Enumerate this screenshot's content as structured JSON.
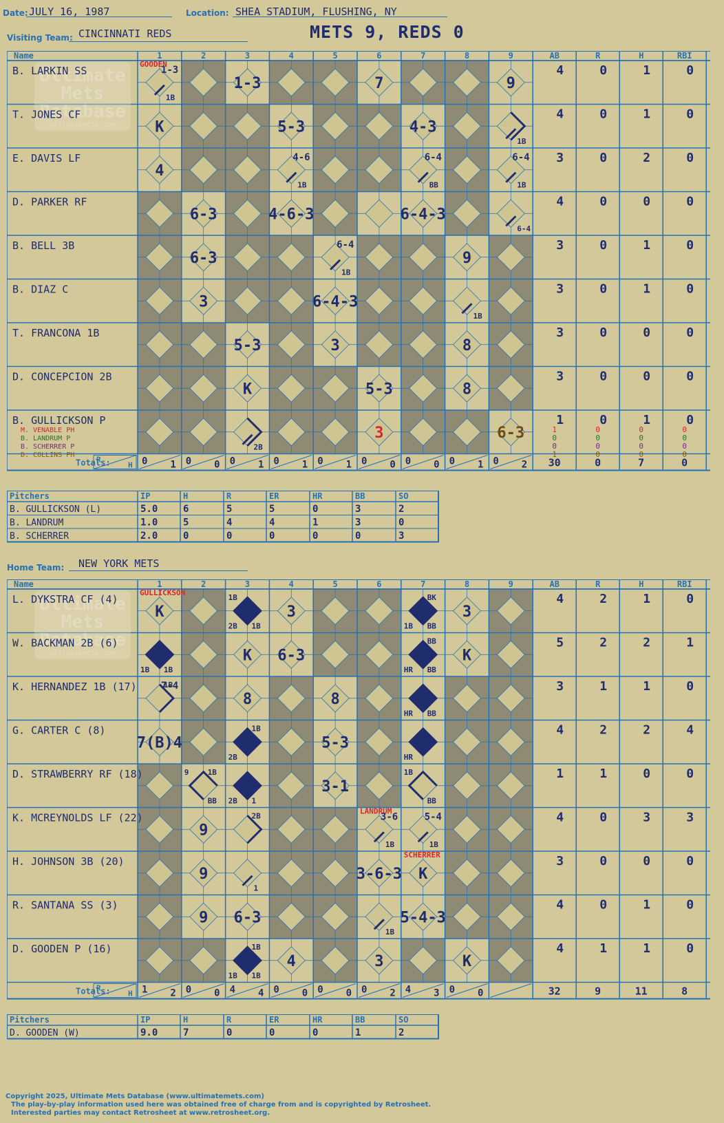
{
  "header": {
    "date_label": "Date:",
    "date": "JULY 16, 1987",
    "location_label": "Location:",
    "location": "SHEA STADIUM, FLUSHING, NY",
    "headline": "METS 9, REDS 0",
    "visiting_label": "Visiting Team:",
    "visiting_team": "CINCINNATI REDS",
    "home_label": "Home Team:",
    "home_team": "NEW YORK METS"
  },
  "columns": {
    "name": "Name",
    "innings": [
      "1",
      "2",
      "3",
      "4",
      "5",
      "6",
      "7",
      "8",
      "9"
    ],
    "stats": [
      "AB",
      "R",
      "H",
      "RBI"
    ],
    "totals": "Totals:",
    "r": "R",
    "h": "H"
  },
  "watermark": {
    "line1": "Ultimate",
    "line2": "Mets",
    "line3": "Database",
    "url": "ultimatemets.com"
  },
  "colors": {
    "background": "#d3c89a",
    "grid": "#2670b4",
    "shade": "#8e8a74",
    "ink": "#1f2c6e",
    "red": "#d8262c",
    "brown": "#6e4a14"
  },
  "visitors": {
    "shade": [
      [
        0,
        1,
        0,
        1,
        1,
        0,
        1,
        1,
        0
      ],
      [
        0,
        1,
        1,
        0,
        1,
        1,
        0,
        1,
        0
      ],
      [
        0,
        1,
        1,
        0,
        1,
        1,
        0,
        1,
        0
      ],
      [
        1,
        0,
        1,
        0,
        1,
        0,
        0,
        1,
        0
      ],
      [
        1,
        0,
        1,
        1,
        0,
        1,
        1,
        0,
        1
      ],
      [
        1,
        0,
        1,
        1,
        0,
        1,
        1,
        0,
        1
      ],
      [
        1,
        1,
        0,
        1,
        0,
        1,
        1,
        0,
        1
      ],
      [
        1,
        1,
        0,
        1,
        1,
        0,
        1,
        0,
        1
      ],
      [
        1,
        1,
        0,
        1,
        1,
        0,
        1,
        1,
        0
      ]
    ],
    "rows": [
      {
        "name": "B. LARKIN SS",
        "stats": [
          "4",
          "0",
          "1",
          "0"
        ],
        "marks": [
          {
            "c": 1,
            "t": "1-3",
            "s": "small"
          },
          {
            "c": 1,
            "b": "1B"
          },
          {
            "c": 3,
            "t": "1-3"
          },
          {
            "c": 6,
            "t": "7"
          },
          {
            "c": 9,
            "t": "9"
          }
        ],
        "subs": []
      },
      {
        "name": "T. JONES CF",
        "stats": [
          "4",
          "0",
          "1",
          "0"
        ],
        "marks": [
          {
            "c": 1,
            "t": "K"
          },
          {
            "c": 4,
            "t": "5-3"
          },
          {
            "c": 7,
            "t": "4-3"
          },
          {
            "c": 9,
            "b": "1B",
            "path": 2
          }
        ],
        "subs": []
      },
      {
        "name": "E. DAVIS LF",
        "stats": [
          "3",
          "0",
          "2",
          "0"
        ],
        "marks": [
          {
            "c": 1,
            "t": "4"
          },
          {
            "c": 4,
            "t": "4-6",
            "s": "small"
          },
          {
            "c": 4,
            "b": "1B"
          },
          {
            "c": 7,
            "t": "6-4",
            "s": "small"
          },
          {
            "c": 7,
            "b": "BB"
          },
          {
            "c": 9,
            "t": "6-4",
            "s": "small"
          },
          {
            "c": 9,
            "b": "1B"
          }
        ],
        "subs": []
      },
      {
        "name": "D. PARKER RF",
        "stats": [
          "4",
          "0",
          "0",
          "0"
        ],
        "marks": [
          {
            "c": 2,
            "t": "6-3"
          },
          {
            "c": 4,
            "t": "4-6-3"
          },
          {
            "c": 7,
            "t": "6-4-3"
          },
          {
            "c": 9,
            "b": "6-4"
          }
        ],
        "subs": []
      },
      {
        "name": "B. BELL 3B",
        "stats": [
          "3",
          "0",
          "1",
          "0"
        ],
        "marks": [
          {
            "c": 2,
            "t": "6-3"
          },
          {
            "c": 5,
            "t": "6-4",
            "s": "small"
          },
          {
            "c": 5,
            "b": "1B"
          },
          {
            "c": 8,
            "t": "9"
          }
        ],
        "subs": []
      },
      {
        "name": "B. DIAZ C",
        "stats": [
          "3",
          "0",
          "1",
          "0"
        ],
        "marks": [
          {
            "c": 2,
            "t": "3"
          },
          {
            "c": 5,
            "t": "6-4-3"
          },
          {
            "c": 8,
            "b": "1B"
          }
        ],
        "subs": []
      },
      {
        "name": "T. FRANCONA 1B",
        "stats": [
          "3",
          "0",
          "0",
          "0"
        ],
        "marks": [
          {
            "c": 3,
            "t": "5-3"
          },
          {
            "c": 5,
            "t": "3"
          },
          {
            "c": 8,
            "t": "8"
          }
        ],
        "subs": []
      },
      {
        "name": "D. CONCEPCION 2B",
        "stats": [
          "3",
          "0",
          "0",
          "0"
        ],
        "marks": [
          {
            "c": 3,
            "t": "K"
          },
          {
            "c": 6,
            "t": "5-3"
          },
          {
            "c": 8,
            "t": "8"
          }
        ],
        "subs": []
      },
      {
        "name": "B. GULLICKSON P",
        "stats": [
          "1",
          "0",
          "1",
          "0"
        ],
        "marks": [
          {
            "c": 3,
            "b": "2B",
            "path": 2
          },
          {
            "c": 6,
            "t": "3",
            "color": "red"
          },
          {
            "c": 9,
            "t": "6-3",
            "color": "brown"
          }
        ],
        "subs": [
          {
            "name": "M. VENABLE PH",
            "color": "#d8262c",
            "stats": [
              "1",
              "0",
              "0",
              "0"
            ]
          },
          {
            "name": "B. LANDRUM P",
            "color": "#2a7a1c",
            "stats": [
              "0",
              "0",
              "0",
              "0"
            ]
          },
          {
            "name": "B. SCHERRER P",
            "color": "#7a2a8a",
            "stats": [
              "0",
              "0",
              "0",
              "0"
            ]
          },
          {
            "name": "D. COLLINS PH",
            "color": "#7a5a14",
            "stats": [
              "1",
              "0",
              "0",
              "0"
            ]
          }
        ]
      }
    ],
    "pitcher_note": "GOODEN",
    "totals": {
      "innings": [
        [
          "0",
          "1"
        ],
        [
          "0",
          "0"
        ],
        [
          "0",
          "1"
        ],
        [
          "0",
          "1"
        ],
        [
          "0",
          "1"
        ],
        [
          "0",
          "0"
        ],
        [
          "0",
          "0"
        ],
        [
          "0",
          "1"
        ],
        [
          "0",
          "2"
        ]
      ],
      "stats": [
        "30",
        "0",
        "7",
        "0"
      ]
    }
  },
  "visitor_pitchers": {
    "header": [
      "Pitchers",
      "IP",
      "H",
      "R",
      "ER",
      "HR",
      "BB",
      "SO"
    ],
    "rows": [
      [
        "B. GULLICKSON (L)",
        "5.0",
        "6",
        "5",
        "5",
        "0",
        "3",
        "2"
      ],
      [
        "B. LANDRUM",
        "1.0",
        "5",
        "4",
        "4",
        "1",
        "3",
        "0"
      ],
      [
        "B. SCHERRER",
        "2.0",
        "0",
        "0",
        "0",
        "0",
        "0",
        "3"
      ]
    ]
  },
  "home": {
    "shade": [
      [
        0,
        1,
        0,
        0,
        1,
        1,
        0,
        0,
        1
      ],
      [
        0,
        1,
        0,
        0,
        1,
        1,
        0,
        0,
        1
      ],
      [
        0,
        1,
        0,
        1,
        0,
        1,
        0,
        1,
        1
      ],
      [
        0,
        1,
        0,
        1,
        0,
        1,
        0,
        1,
        1
      ],
      [
        1,
        0,
        0,
        1,
        0,
        1,
        0,
        1,
        1
      ],
      [
        1,
        0,
        0,
        1,
        1,
        0,
        0,
        1,
        1
      ],
      [
        1,
        0,
        0,
        1,
        1,
        0,
        0,
        1,
        1
      ],
      [
        1,
        0,
        0,
        1,
        1,
        0,
        0,
        1,
        1
      ],
      [
        1,
        1,
        0,
        0,
        1,
        0,
        1,
        0,
        1
      ]
    ],
    "rows": [
      {
        "name": "L. DYKSTRA CF (4)",
        "stats": [
          "4",
          "2",
          "1",
          "0"
        ],
        "marks": [
          {
            "c": 1,
            "t": "K"
          },
          {
            "c": 3,
            "run": true,
            "tl": "1B",
            "bl": "2B",
            "br": "1B"
          },
          {
            "c": 4,
            "t": "3"
          },
          {
            "c": 7,
            "run": true,
            "tr": "BK",
            "bl": "1B",
            "br": "BB"
          },
          {
            "c": 8,
            "t": "3"
          }
        ]
      },
      {
        "name": "W. BACKMAN 2B (6)",
        "stats": [
          "5",
          "2",
          "2",
          "1"
        ],
        "marks": [
          {
            "c": 1,
            "run": true,
            "bl": "1B",
            "br": "1B"
          },
          {
            "c": 3,
            "t": "K"
          },
          {
            "c": 4,
            "t": "6-3"
          },
          {
            "c": 7,
            "run": true,
            "tr": "BB",
            "bl": "HR",
            "br": "BB"
          },
          {
            "c": 8,
            "t": "K"
          }
        ]
      },
      {
        "name": "K. HERNANDEZ 1B (17)",
        "stats": [
          "3",
          "1",
          "1",
          "0"
        ],
        "marks": [
          {
            "c": 1,
            "t": "7-4",
            "s": "small",
            "tr": "1B",
            "path": 2
          },
          {
            "c": 3,
            "t": "8"
          },
          {
            "c": 5,
            "t": "8"
          },
          {
            "c": 7,
            "run": true,
            "bl": "HR",
            "br": "BB"
          }
        ]
      },
      {
        "name": "G. CARTER C (8)",
        "stats": [
          "4",
          "2",
          "2",
          "4"
        ],
        "marks": [
          {
            "c": 1,
            "t": "7(B)4"
          },
          {
            "c": 3,
            "run": true,
            "tr": "1B",
            "bl": "2B"
          },
          {
            "c": 5,
            "t": "5-3"
          },
          {
            "c": 7,
            "run": true,
            "bl": "HR"
          }
        ]
      },
      {
        "name": "D. STRAWBERRY RF (18)",
        "stats": [
          "1",
          "1",
          "0",
          "0"
        ],
        "marks": [
          {
            "c": 2,
            "tl": "9",
            "tr": "1B",
            "br": "BB",
            "path": 3
          },
          {
            "c": 3,
            "run": true,
            "bl": "2B",
            "br": "1"
          },
          {
            "c": 5,
            "t": "3-1"
          },
          {
            "c": 7,
            "tl": "1B",
            "br": "BB",
            "path": 3
          }
        ]
      },
      {
        "name": "K. MCREYNOLDS LF (22)",
        "stats": [
          "4",
          "0",
          "3",
          "3"
        ],
        "marks": [
          {
            "c": 2,
            "t": "9"
          },
          {
            "c": 3,
            "tr": "2B",
            "path": 2
          },
          {
            "c": 6,
            "t": "3-6",
            "s": "small"
          },
          {
            "c": 6,
            "b": "1B"
          },
          {
            "c": 7,
            "t": "5-4",
            "s": "small"
          },
          {
            "c": 7,
            "b": "1B"
          }
        ]
      },
      {
        "name": "H. JOHNSON 3B (20)",
        "stats": [
          "3",
          "0",
          "0",
          "0"
        ],
        "marks": [
          {
            "c": 2,
            "t": "9"
          },
          {
            "c": 3,
            "b": "1"
          },
          {
            "c": 6,
            "t": "3-6-3"
          },
          {
            "c": 7,
            "t": "K"
          }
        ]
      },
      {
        "name": "R. SANTANA SS (3)",
        "stats": [
          "4",
          "0",
          "1",
          "0"
        ],
        "marks": [
          {
            "c": 2,
            "t": "9"
          },
          {
            "c": 3,
            "t": "6-3"
          },
          {
            "c": 6,
            "b": "1B"
          },
          {
            "c": 7,
            "t": "5-4-3"
          }
        ]
      },
      {
        "name": "D. GOODEN P (16)",
        "stats": [
          "4",
          "1",
          "1",
          "0"
        ],
        "marks": [
          {
            "c": 3,
            "run": true,
            "tr": "1B",
            "bl": "1B",
            "br": "1B"
          },
          {
            "c": 4,
            "t": "4"
          },
          {
            "c": 6,
            "t": "3"
          },
          {
            "c": 8,
            "t": "K"
          }
        ]
      }
    ],
    "pitcher_note": "GULLICKSON",
    "notes": [
      {
        "text": "LANDRUM",
        "row": 5,
        "col": 6
      },
      {
        "text": "SCHERRER",
        "row": 6,
        "col": 7
      }
    ],
    "totals": {
      "innings": [
        [
          "1",
          "2"
        ],
        [
          "0",
          "0"
        ],
        [
          "4",
          "4"
        ],
        [
          "0",
          "0"
        ],
        [
          "0",
          "0"
        ],
        [
          "0",
          "2"
        ],
        [
          "4",
          "3"
        ],
        [
          "0",
          "0"
        ],
        [
          "",
          ""
        ]
      ],
      "stats": [
        "32",
        "9",
        "11",
        "8"
      ]
    }
  },
  "home_pitchers": {
    "header": [
      "Pitchers",
      "IP",
      "H",
      "R",
      "ER",
      "HR",
      "BB",
      "SO"
    ],
    "rows": [
      [
        "D. GOODEN (W)",
        "9.0",
        "7",
        "0",
        "0",
        "0",
        "1",
        "2"
      ]
    ]
  },
  "footer": {
    "line1": "Copyright 2025, Ultimate Mets Database (www.ultimatemets.com)",
    "line2": "The play-by-play information used here was obtained free of charge from and is copyrighted by Retrosheet.",
    "line3": "Interested parties may contact Retrosheet at www.retrosheet.org."
  }
}
